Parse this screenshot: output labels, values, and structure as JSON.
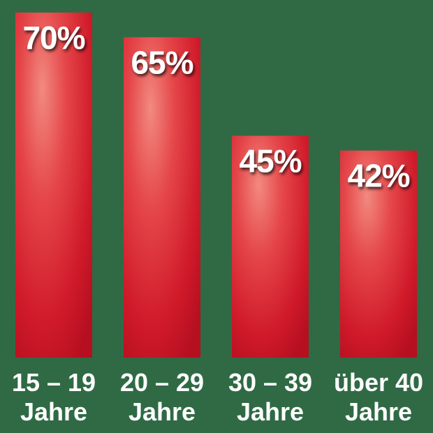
{
  "colors": {
    "background": "#2f6a45",
    "bar_base": "#d41a2a",
    "bar_highlight": "#f07d75",
    "bar_shadow": "#b01020",
    "text": "#ffffff"
  },
  "chart_data": {
    "type": "bar",
    "categories": [
      [
        "15 – 19",
        "Jahre"
      ],
      [
        "20 – 29",
        "Jahre"
      ],
      [
        "30 – 39",
        "Jahre"
      ],
      [
        "über 40",
        "Jahre"
      ]
    ],
    "values": [
      70,
      65,
      45,
      42
    ],
    "labels": [
      "70%",
      "65%",
      "45%",
      "42%"
    ],
    "unit": "%",
    "ylim": [
      0,
      100
    ],
    "grid": false,
    "legend": "none"
  }
}
